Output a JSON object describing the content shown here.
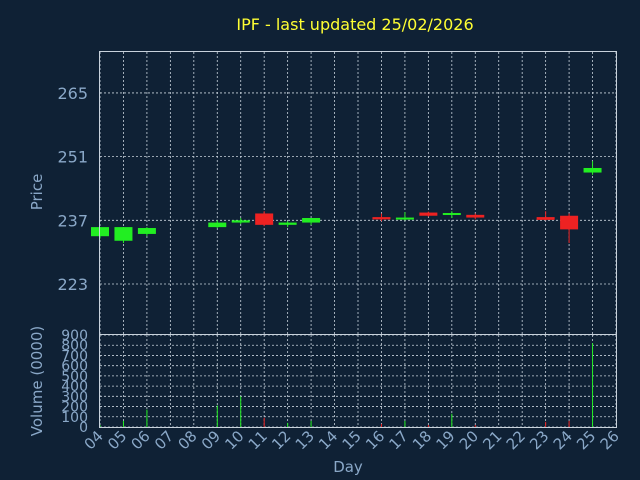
{
  "chart_data": {
    "type": "candlestick",
    "title": "IPF - last updated 25/02/2026",
    "xlabel": "Day",
    "ylabel": "Price",
    "volume_label": "Volume (0000)",
    "x_ticks": [
      "04",
      "05",
      "06",
      "07",
      "08",
      "09",
      "10",
      "11",
      "12",
      "13",
      "14",
      "15",
      "16",
      "17",
      "18",
      "19",
      "20",
      "21",
      "22",
      "23",
      "24",
      "25",
      "26"
    ],
    "price_ticks": [
      223,
      237,
      251,
      265
    ],
    "price_range": [
      212,
      274
    ],
    "volume_ticks": [
      0,
      100,
      200,
      300,
      400,
      500,
      600,
      700,
      800,
      900
    ],
    "volume_range": [
      0,
      900
    ],
    "colors": {
      "up": "#22ee22",
      "down": "#ee2222"
    },
    "candles": [
      {
        "day": "04",
        "open": 233.5,
        "high": 235.5,
        "low": 233.0,
        "close": 235.5,
        "volume": 20
      },
      {
        "day": "05",
        "open": 232.5,
        "high": 235.5,
        "low": 232.0,
        "close": 235.5,
        "volume": 60
      },
      {
        "day": "06",
        "open": 234.0,
        "high": 235.5,
        "low": 233.5,
        "close": 235.3,
        "volume": 170
      },
      {
        "day": "09",
        "open": 235.5,
        "high": 237.0,
        "low": 235.3,
        "close": 236.5,
        "volume": 210
      },
      {
        "day": "10",
        "open": 236.5,
        "high": 237.5,
        "low": 236.2,
        "close": 237.0,
        "volume": 300
      },
      {
        "day": "11",
        "open": 238.5,
        "high": 239.0,
        "low": 235.7,
        "close": 236.0,
        "volume": 90
      },
      {
        "day": "12",
        "open": 236.0,
        "high": 236.8,
        "low": 235.5,
        "close": 236.5,
        "volume": 40
      },
      {
        "day": "13",
        "open": 236.5,
        "high": 237.5,
        "low": 236.0,
        "close": 237.5,
        "volume": 60
      },
      {
        "day": "16",
        "open": 237.7,
        "high": 238.5,
        "low": 236.8,
        "close": 237.2,
        "volume": 30
      },
      {
        "day": "17",
        "open": 237.2,
        "high": 238.8,
        "low": 237.0,
        "close": 237.6,
        "volume": 60
      },
      {
        "day": "18",
        "open": 238.7,
        "high": 238.9,
        "low": 237.8,
        "close": 238.0,
        "volume": 20
      },
      {
        "day": "19",
        "open": 238.2,
        "high": 239.0,
        "low": 237.5,
        "close": 238.6,
        "volume": 130
      },
      {
        "day": "20",
        "open": 238.2,
        "high": 238.5,
        "low": 237.2,
        "close": 237.6,
        "volume": 20
      },
      {
        "day": "23",
        "open": 237.7,
        "high": 239.0,
        "low": 237.0,
        "close": 237.1,
        "volume": 50
      },
      {
        "day": "24",
        "open": 238.0,
        "high": 238.5,
        "low": 232.0,
        "close": 235.0,
        "volume": 60
      },
      {
        "day": "25",
        "open": 247.5,
        "high": 250.0,
        "low": 247.0,
        "close": 248.5,
        "volume": 820
      }
    ]
  }
}
